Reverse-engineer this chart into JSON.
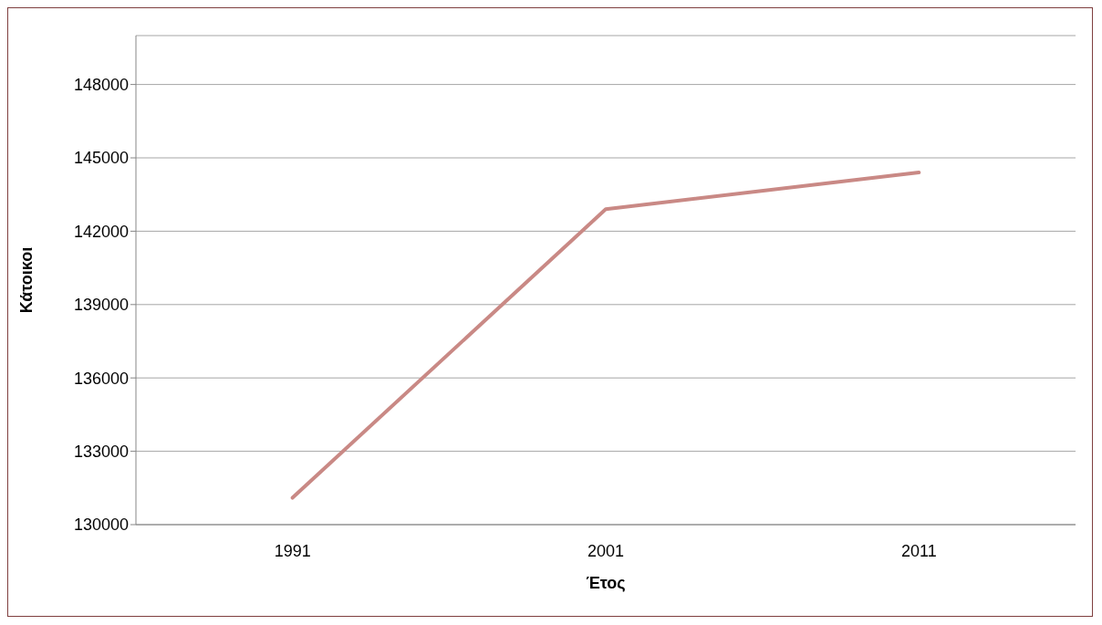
{
  "chart_data": {
    "type": "line",
    "xlabel": "Έτος",
    "ylabel": "Κάτοικοι",
    "categories": [
      "1991",
      "2001",
      "2011"
    ],
    "series": [
      {
        "color": "#c98985",
        "values": [
          131100,
          142900,
          144400
        ]
      }
    ],
    "ylim": [
      130000,
      150000
    ],
    "yticks": [
      130000,
      133000,
      136000,
      139000,
      142000,
      145000,
      148000
    ],
    "grid": "y",
    "legend": false
  }
}
